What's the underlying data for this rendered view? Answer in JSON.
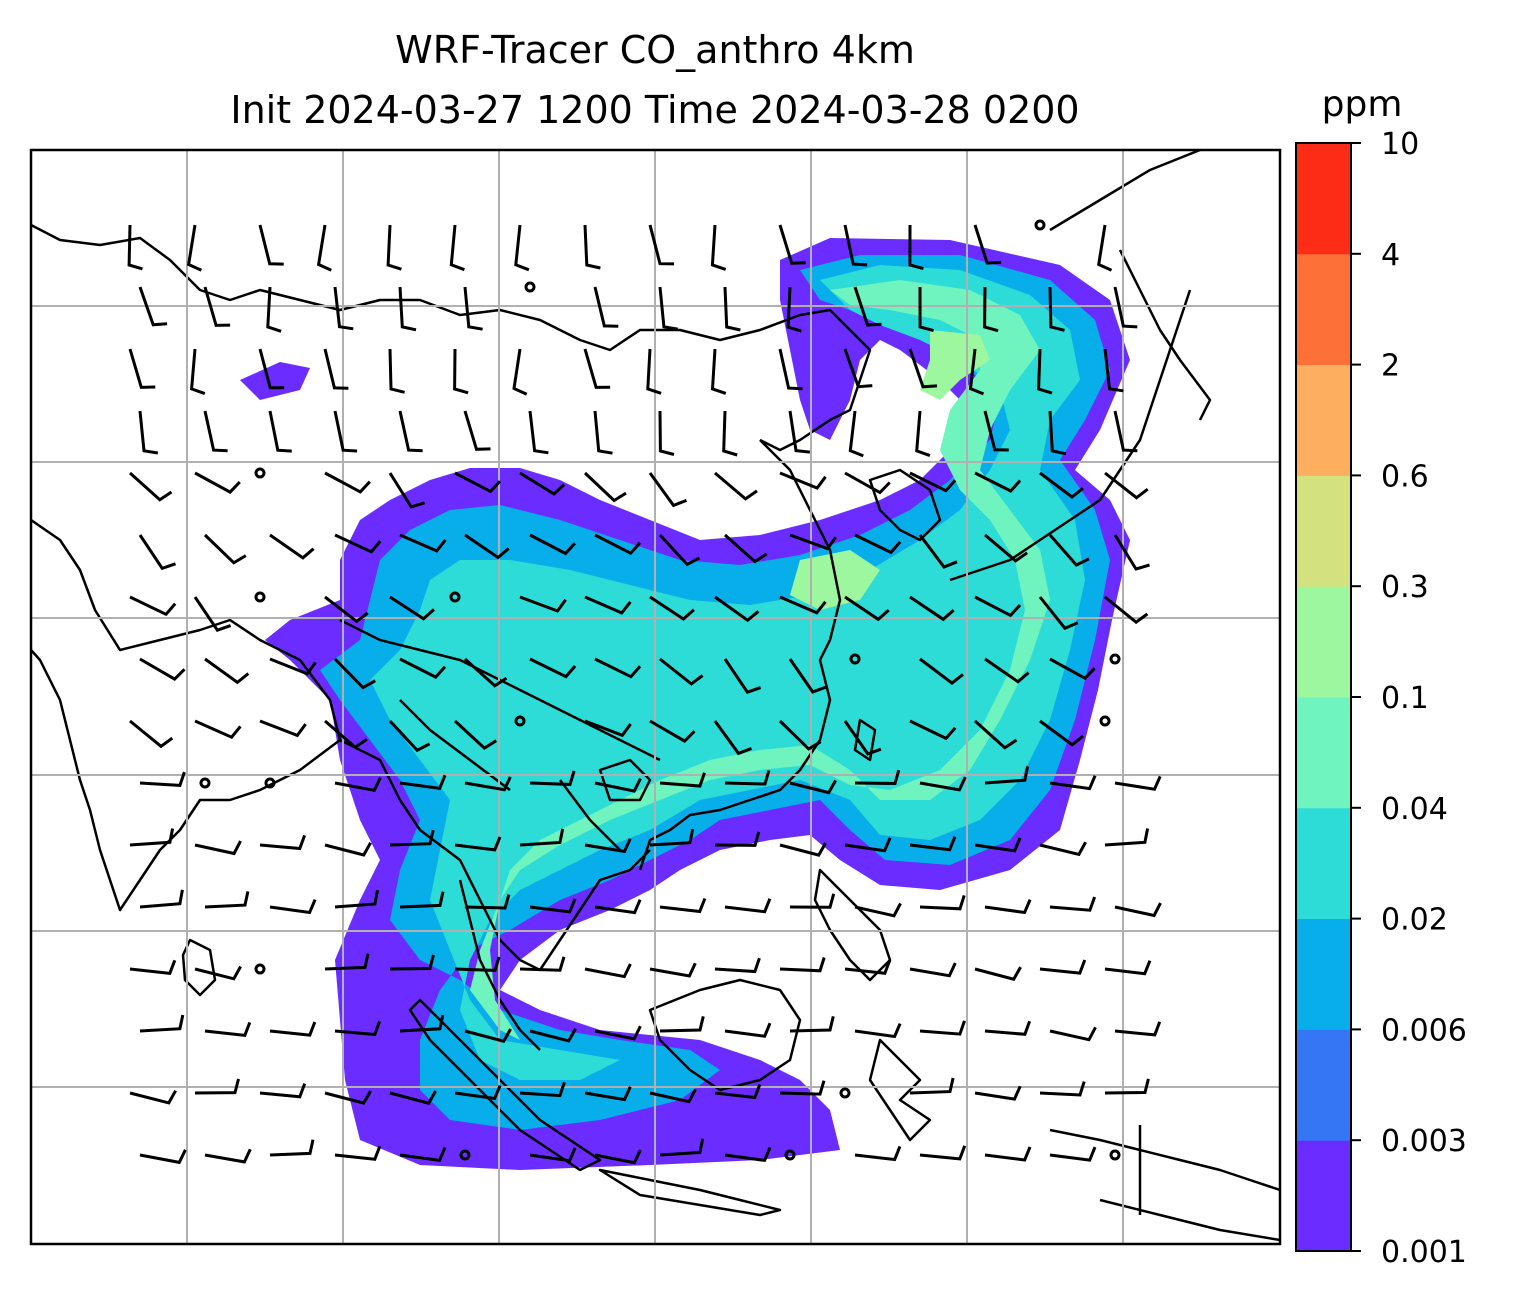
{
  "title": {
    "line1": "WRF-Tracer CO_anthro 4km",
    "line2": "Init 2024-03-27 1200 Time 2024-03-28 0200"
  },
  "colorbar": {
    "unit_label": "ppm",
    "levels": [
      "0.001",
      "0.003",
      "0.006",
      "0.02",
      "0.04",
      "0.1",
      "0.3",
      "0.6",
      "2",
      "4",
      "10"
    ],
    "colors": [
      "#6a2cff",
      "#3576f4",
      "#08aee9",
      "#2ddcd6",
      "#6ff4c0",
      "#9cf79e",
      "#d3e17f",
      "#fdae5f",
      "#fd7139",
      "#fd2c16"
    ]
  },
  "map": {
    "gridlines": "on",
    "colors": {
      "coastline": "#000000",
      "grid": "#b0b0b0",
      "frame": "#000000"
    }
  }
}
